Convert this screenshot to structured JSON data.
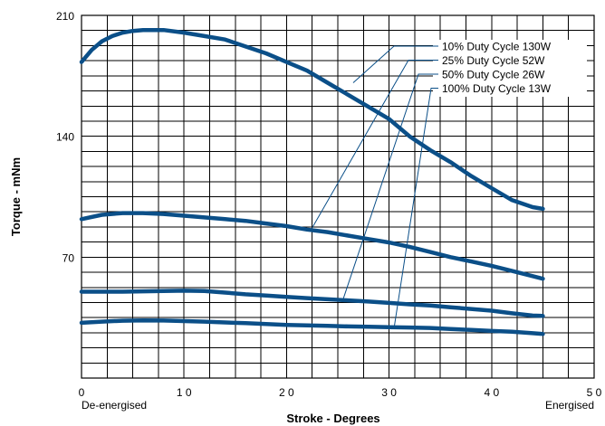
{
  "chart_data": {
    "type": "line",
    "title": "",
    "xlabel": "Stroke - Degrees",
    "ylabel": "Torque - mNm",
    "xlim": [
      0,
      50
    ],
    "ylim": [
      0,
      210
    ],
    "x_ticks": [
      0,
      10,
      20,
      30,
      40,
      50
    ],
    "x_tick_labels": [
      "0",
      "1 0",
      "2 0",
      "3 0",
      "4 0",
      "5 0"
    ],
    "y_ticks": [
      70,
      140,
      210
    ],
    "y_tick_labels": [
      "70",
      "140",
      "210"
    ],
    "x_end_labels": {
      "start": "De-energised",
      "end": "Energised"
    },
    "grid": true,
    "grid_x_step": 2.5,
    "grid_y_step": 8.75,
    "line_color": "#0b4f88",
    "legend_position": "top-right",
    "series": [
      {
        "name": "10% Duty Cycle 130W",
        "points": [
          [
            0,
            183
          ],
          [
            1,
            190
          ],
          [
            2,
            195
          ],
          [
            3,
            198
          ],
          [
            4,
            200
          ],
          [
            5,
            201
          ],
          [
            6,
            201.5
          ],
          [
            7,
            201.5
          ],
          [
            8,
            201.5
          ],
          [
            10,
            200
          ],
          [
            12,
            198
          ],
          [
            14,
            196
          ],
          [
            16,
            192
          ],
          [
            18,
            188
          ],
          [
            20,
            183
          ],
          [
            22,
            178
          ],
          [
            24,
            171
          ],
          [
            26,
            164
          ],
          [
            28,
            157
          ],
          [
            30,
            150
          ],
          [
            32,
            140
          ],
          [
            34,
            132
          ],
          [
            36,
            125
          ],
          [
            38,
            117
          ],
          [
            40,
            110
          ],
          [
            42,
            103
          ],
          [
            44,
            99
          ],
          [
            45,
            98
          ]
        ]
      },
      {
        "name": "25% Duty Cycle 52W",
        "points": [
          [
            0,
            92
          ],
          [
            2,
            94.5
          ],
          [
            4,
            95.5
          ],
          [
            6,
            95.5
          ],
          [
            8,
            95
          ],
          [
            10,
            94
          ],
          [
            12,
            93
          ],
          [
            14,
            92
          ],
          [
            16,
            91
          ],
          [
            18,
            89.5
          ],
          [
            20,
            88
          ],
          [
            22,
            86
          ],
          [
            24,
            84.5
          ],
          [
            26,
            82.5
          ],
          [
            28,
            80.5
          ],
          [
            30,
            78.5
          ],
          [
            32,
            76
          ],
          [
            34,
            73
          ],
          [
            36,
            70
          ],
          [
            38,
            67.5
          ],
          [
            40,
            65
          ],
          [
            42,
            62
          ],
          [
            44,
            59
          ],
          [
            45,
            57.5
          ]
        ]
      },
      {
        "name": "50% Duty Cycle 26W",
        "points": [
          [
            0,
            50
          ],
          [
            2,
            50
          ],
          [
            4,
            50
          ],
          [
            6,
            50.2
          ],
          [
            8,
            50.4
          ],
          [
            10,
            50.6
          ],
          [
            12,
            50.4
          ],
          [
            14,
            49.5
          ],
          [
            16,
            48.5
          ],
          [
            18,
            47.8
          ],
          [
            20,
            47
          ],
          [
            22,
            46.3
          ],
          [
            24,
            45.6
          ],
          [
            26,
            45
          ],
          [
            28,
            44.3
          ],
          [
            30,
            43.5
          ],
          [
            32,
            42.7
          ],
          [
            34,
            42
          ],
          [
            36,
            41
          ],
          [
            38,
            40
          ],
          [
            40,
            39
          ],
          [
            42,
            37.5
          ],
          [
            44,
            36.2
          ],
          [
            45,
            36
          ]
        ]
      },
      {
        "name": "100% Duty Cycle 13W",
        "points": [
          [
            0,
            32
          ],
          [
            2,
            32.7
          ],
          [
            4,
            33.2
          ],
          [
            6,
            33.4
          ],
          [
            8,
            33.3
          ],
          [
            10,
            33
          ],
          [
            12,
            32.7
          ],
          [
            14,
            32.2
          ],
          [
            16,
            31.8
          ],
          [
            18,
            31.3
          ],
          [
            20,
            30.8
          ],
          [
            22,
            30.5
          ],
          [
            24,
            30.2
          ],
          [
            26,
            29.9
          ],
          [
            28,
            29.7
          ],
          [
            30,
            29.5
          ],
          [
            32,
            29.3
          ],
          [
            34,
            29
          ],
          [
            36,
            28.4
          ],
          [
            38,
            27.9
          ],
          [
            40,
            27.3
          ],
          [
            42,
            26.8
          ],
          [
            44,
            26
          ],
          [
            45,
            25.5
          ]
        ]
      }
    ],
    "legend": {
      "entries": [
        {
          "label": "10% Duty Cycle 130W",
          "anchor": [
            26.5,
            171
          ]
        },
        {
          "label": "25% Duty Cycle 52W",
          "anchor": [
            22.5,
            87
          ]
        },
        {
          "label": "50% Duty Cycle 26W",
          "anchor": [
            25.5,
            45.3
          ]
        },
        {
          "label": "100% Duty Cycle 13W",
          "anchor": [
            30.5,
            29.5
          ]
        }
      ]
    }
  }
}
